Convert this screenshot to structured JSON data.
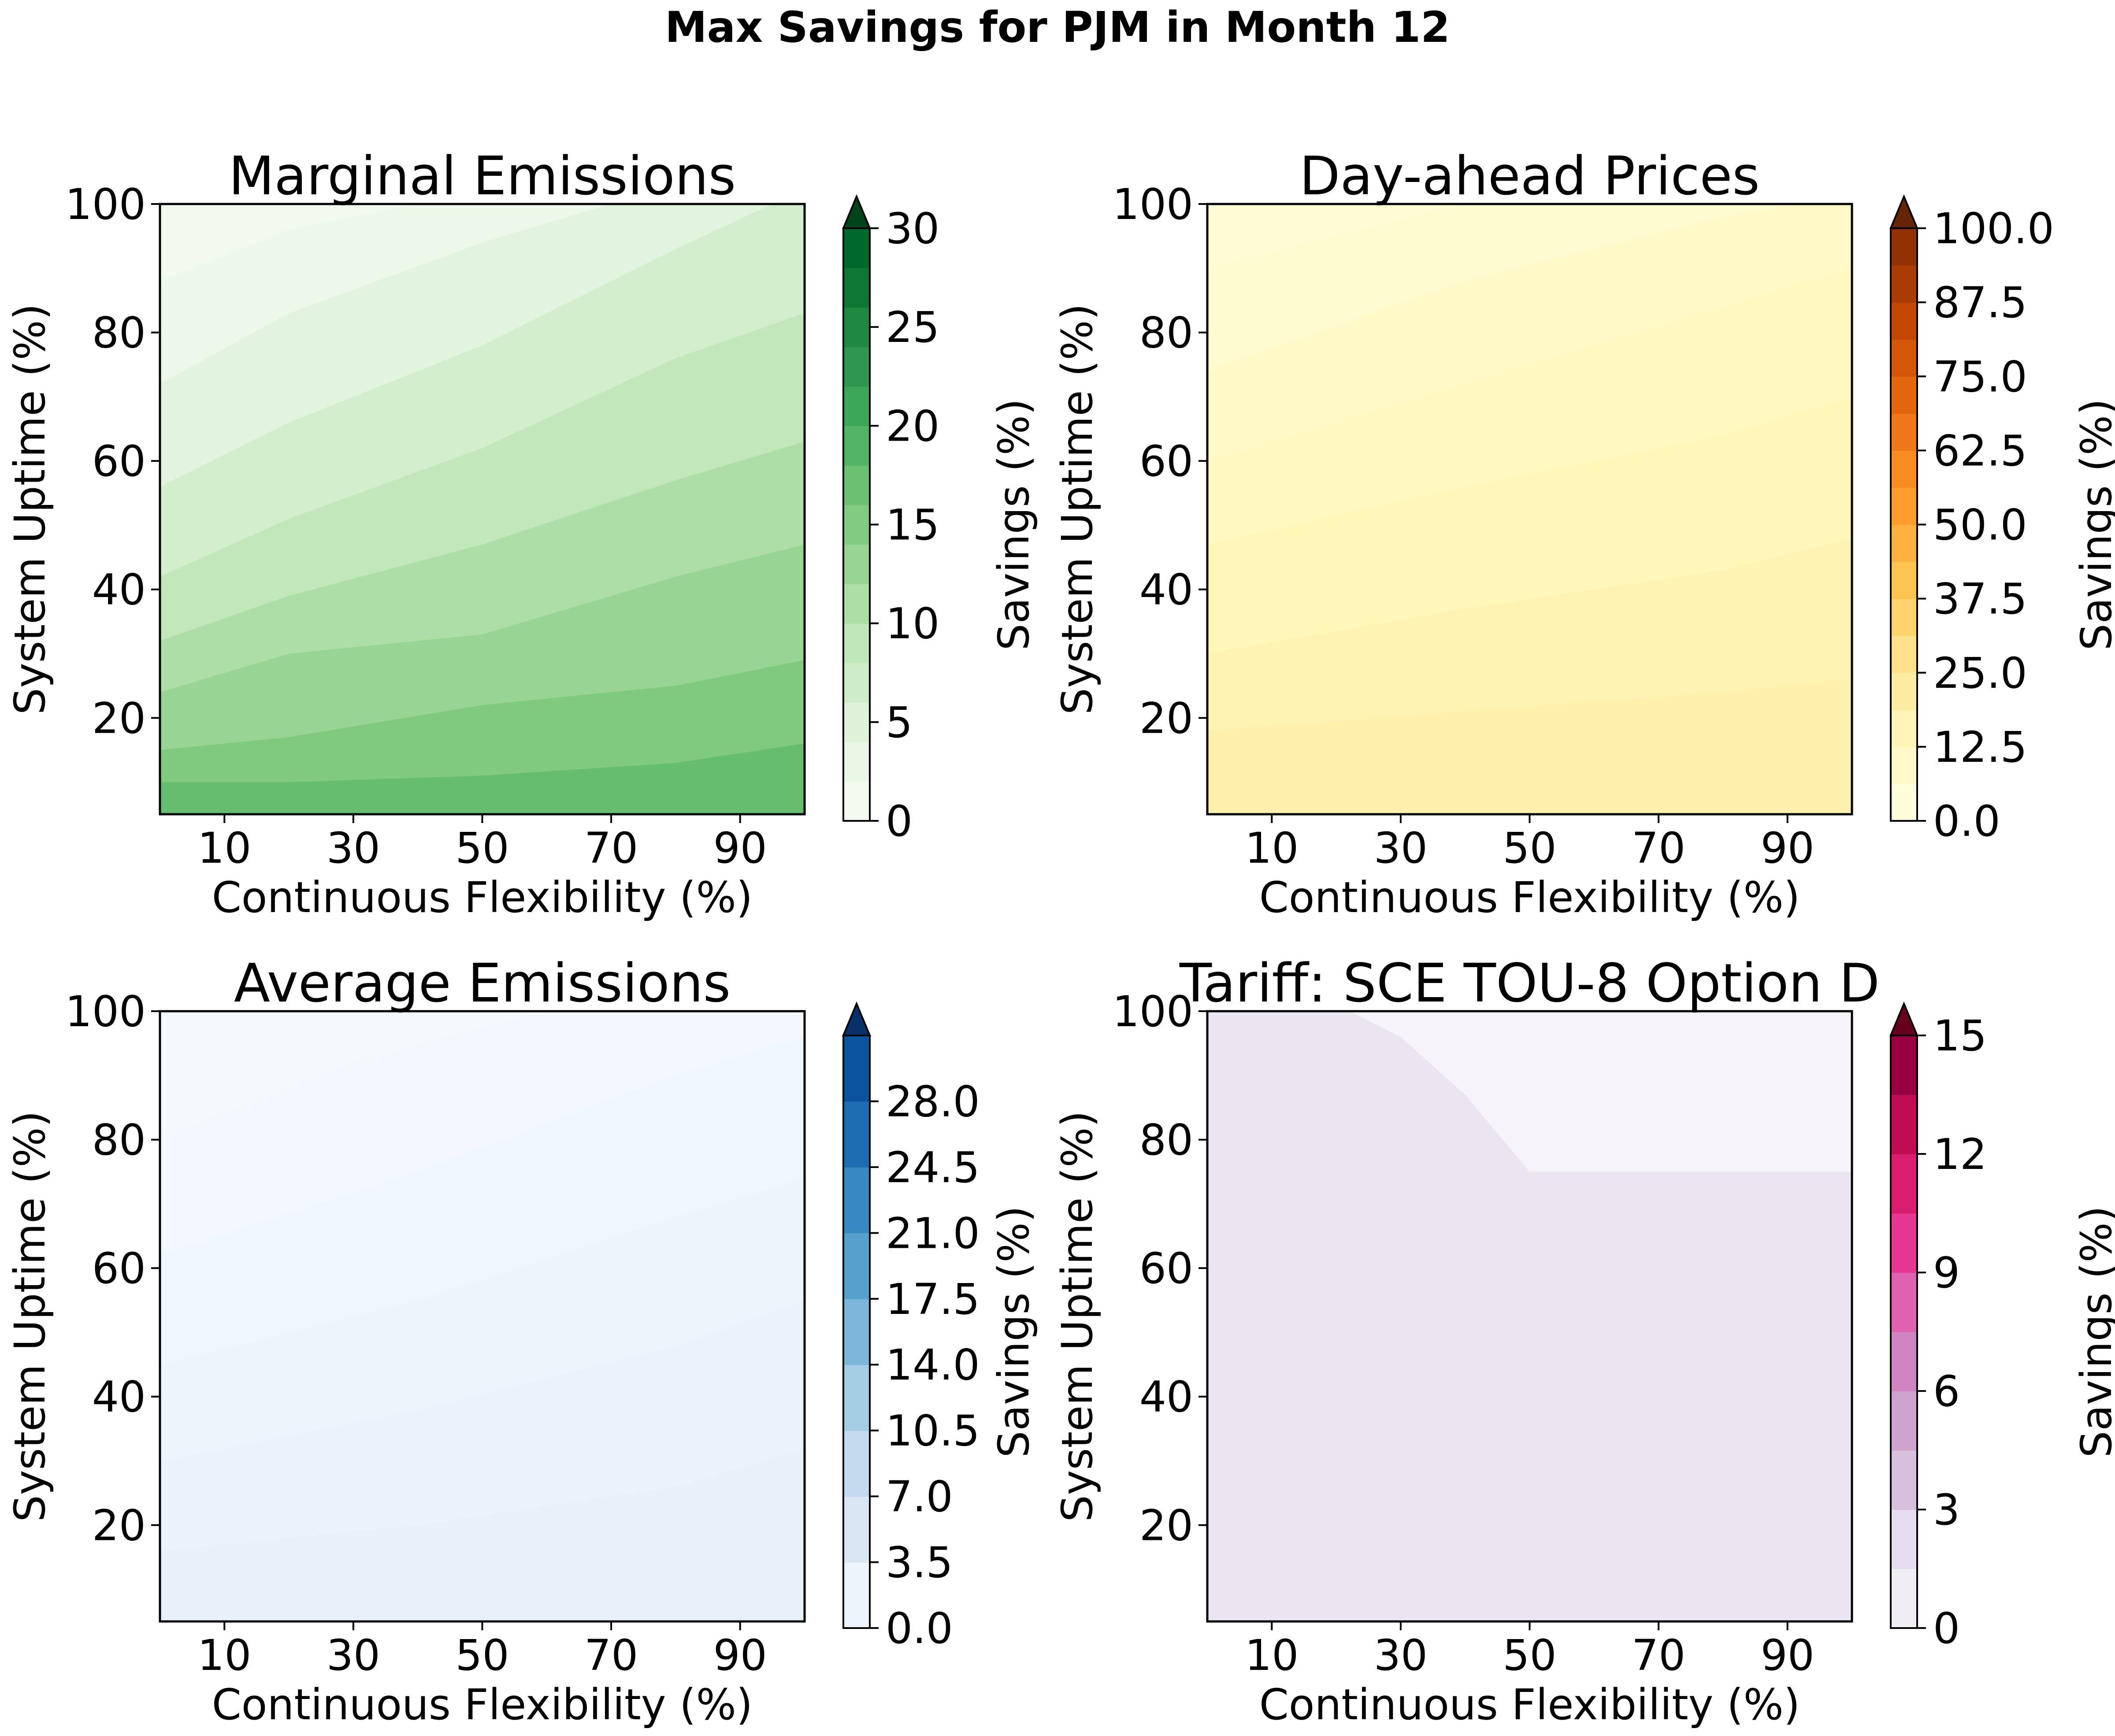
{
  "figure": {
    "title": "Max Savings for PJM in Month 12"
  },
  "chart_data": [
    {
      "type": "heatmap",
      "title": "Marginal Emissions",
      "xlabel": "Continuous Flexibility (%)",
      "ylabel": "System Uptime (%)",
      "xlim": [
        0,
        100
      ],
      "ylim": [
        5,
        100
      ],
      "xticks": [
        "10",
        "30",
        "50",
        "70",
        "90"
      ],
      "yticks": [
        "20",
        "40",
        "60",
        "80",
        "100"
      ],
      "colorbar": {
        "label": "Savings (%)",
        "range": [
          0,
          30
        ],
        "levels": 15,
        "extend": "max",
        "ticks": [
          "0",
          "5",
          "10",
          "15",
          "20",
          "25",
          "30"
        ],
        "colormap": "Greens",
        "colors": [
          "#f7fcf5",
          "#e5f5e0",
          "#c7e9c0",
          "#a1d99b",
          "#74c476",
          "#41ab5d",
          "#238b45",
          "#006d2c",
          "#00441b"
        ]
      },
      "contours": [
        {
          "level": 2,
          "points": [
            [
              0,
              88
            ],
            [
              20,
              96
            ],
            [
              40,
              100
            ]
          ]
        },
        {
          "level": 4,
          "points": [
            [
              0,
              72
            ],
            [
              20,
              83
            ],
            [
              50,
              94
            ],
            [
              70,
              100
            ]
          ]
        },
        {
          "level": 6,
          "points": [
            [
              0,
              56
            ],
            [
              20,
              66
            ],
            [
              50,
              78
            ],
            [
              80,
              93
            ],
            [
              95,
              100
            ]
          ]
        },
        {
          "level": 8,
          "points": [
            [
              0,
              42
            ],
            [
              20,
              51
            ],
            [
              50,
              62
            ],
            [
              80,
              76
            ],
            [
              100,
              83
            ]
          ]
        },
        {
          "level": 10,
          "points": [
            [
              0,
              32
            ],
            [
              20,
              39
            ],
            [
              50,
              47
            ],
            [
              80,
              57
            ],
            [
              100,
              63
            ]
          ]
        },
        {
          "level": 12,
          "points": [
            [
              0,
              24
            ],
            [
              20,
              30
            ],
            [
              50,
              33
            ],
            [
              80,
              42
            ],
            [
              100,
              47
            ]
          ]
        },
        {
          "level": 14,
          "points": [
            [
              0,
              15
            ],
            [
              20,
              17
            ],
            [
              50,
              22
            ],
            [
              80,
              25
            ],
            [
              100,
              29
            ]
          ]
        },
        {
          "level": 16,
          "points": [
            [
              0,
              10
            ],
            [
              20,
              10
            ],
            [
              50,
              11
            ],
            [
              80,
              13
            ],
            [
              100,
              16
            ]
          ]
        }
      ],
      "min": 1,
      "max": 17
    },
    {
      "type": "heatmap",
      "title": "Day-ahead Prices",
      "xlabel": "Continuous Flexibility (%)",
      "ylabel": "System Uptime (%)",
      "xlim": [
        0,
        100
      ],
      "ylim": [
        5,
        100
      ],
      "xticks": [
        "10",
        "30",
        "50",
        "70",
        "90"
      ],
      "yticks": [
        "20",
        "40",
        "60",
        "80",
        "100"
      ],
      "colorbar": {
        "label": "Savings (%)",
        "range": [
          0,
          100
        ],
        "levels": 16,
        "extend": "max",
        "ticks": [
          "0.0",
          "12.5",
          "25.0",
          "37.5",
          "50.0",
          "62.5",
          "75.0",
          "87.5",
          "100.0"
        ],
        "colormap": "YlOrBr",
        "colors": [
          "#ffffe5",
          "#fff7bc",
          "#fee391",
          "#fec44f",
          "#fe9929",
          "#ec7014",
          "#cc4c02",
          "#993404",
          "#662506"
        ]
      },
      "contours": [
        {
          "level": 6.25,
          "points": [
            [
              0,
              90
            ],
            [
              40,
              100
            ]
          ]
        },
        {
          "level": 9,
          "points": [
            [
              0,
              74
            ],
            [
              40,
              88
            ],
            [
              80,
              98
            ],
            [
              92,
              100
            ]
          ]
        },
        {
          "level": 11,
          "points": [
            [
              0,
              60
            ],
            [
              40,
              72
            ],
            [
              80,
              84
            ],
            [
              100,
              90
            ]
          ]
        },
        {
          "level": 13,
          "points": [
            [
              0,
              47
            ],
            [
              40,
              56
            ],
            [
              80,
              64
            ],
            [
              100,
              70
            ]
          ]
        },
        {
          "level": 15,
          "points": [
            [
              0,
              30
            ],
            [
              40,
              37
            ],
            [
              80,
              43
            ],
            [
              100,
              48
            ]
          ]
        },
        {
          "level": 17,
          "points": [
            [
              0,
              18
            ],
            [
              40,
              21
            ],
            [
              80,
              24
            ],
            [
              100,
              26
            ]
          ]
        }
      ],
      "min": 5,
      "max": 18
    },
    {
      "type": "heatmap",
      "title": "Average Emissions",
      "xlabel": "Continuous Flexibility (%)",
      "ylabel": "System Uptime (%)",
      "xlim": [
        0,
        100
      ],
      "ylim": [
        5,
        100
      ],
      "xticks": [
        "10",
        "30",
        "50",
        "70",
        "90"
      ],
      "yticks": [
        "20",
        "40",
        "60",
        "80",
        "100"
      ],
      "colorbar": {
        "label": "Savings (%)",
        "range": [
          0,
          31.5
        ],
        "levels": 9,
        "extend": "max",
        "ticks": [
          "0.0",
          "3.5",
          "7.0",
          "10.5",
          "14.0",
          "17.5",
          "21.0",
          "24.5",
          "28.0"
        ],
        "colormap": "Blues",
        "colors": [
          "#f7fbff",
          "#deebf7",
          "#c6dbef",
          "#9ecae1",
          "#6baed6",
          "#4292c6",
          "#2171b5",
          "#08519c",
          "#08306b"
        ]
      },
      "contours": [
        {
          "level": 0.8,
          "points": [
            [
              0,
              80
            ],
            [
              30,
              92
            ],
            [
              60,
              100
            ]
          ]
        },
        {
          "level": 1.2,
          "points": [
            [
              0,
              62
            ],
            [
              40,
              75
            ],
            [
              80,
              90
            ],
            [
              100,
              96
            ]
          ]
        },
        {
          "level": 1.6,
          "points": [
            [
              0,
              45
            ],
            [
              40,
              55
            ],
            [
              80,
              68
            ],
            [
              100,
              74
            ]
          ]
        },
        {
          "level": 2.0,
          "points": [
            [
              0,
              30
            ],
            [
              40,
              38
            ],
            [
              80,
              48
            ],
            [
              100,
              55
            ]
          ]
        },
        {
          "level": 2.4,
          "points": [
            [
              0,
              16
            ],
            [
              40,
              20
            ],
            [
              80,
              26
            ],
            [
              100,
              32
            ]
          ]
        }
      ],
      "min": 0.5,
      "max": 2.6
    },
    {
      "type": "heatmap",
      "title": "Tariff: SCE TOU-8 Option D",
      "xlabel": "Continuous Flexibility (%)",
      "ylabel": "System Uptime (%)",
      "xlim": [
        0,
        100
      ],
      "ylim": [
        5,
        100
      ],
      "xticks": [
        "10",
        "30",
        "50",
        "70",
        "90"
      ],
      "yticks": [
        "20",
        "40",
        "60",
        "80",
        "100"
      ],
      "colorbar": {
        "label": "Savings (%)",
        "range": [
          0,
          15
        ],
        "levels": 10,
        "extend": "max",
        "ticks": [
          "0",
          "3",
          "6",
          "9",
          "12",
          "15"
        ],
        "colormap": "PuRd",
        "colors": [
          "#f7f4f9",
          "#e7e1ef",
          "#d4b9da",
          "#c994c7",
          "#df65b0",
          "#e7298a",
          "#ce1256",
          "#980043",
          "#67001f"
        ]
      },
      "contours": [
        {
          "level": 0.01,
          "points": [
            [
              0,
              100
            ],
            [
              10,
              87
            ],
            [
              20,
              80
            ],
            [
              25,
              75
            ],
            [
              30,
              66
            ],
            [
              35,
              59
            ],
            [
              40,
              57
            ],
            [
              100,
              57
            ]
          ]
        },
        {
          "level": 1.5,
          "points": [
            [
              22,
              100
            ],
            [
              30,
              96
            ],
            [
              40,
              87
            ],
            [
              50,
              75
            ],
            [
              100,
              75
            ]
          ]
        }
      ],
      "min": 0,
      "max": 3
    }
  ]
}
